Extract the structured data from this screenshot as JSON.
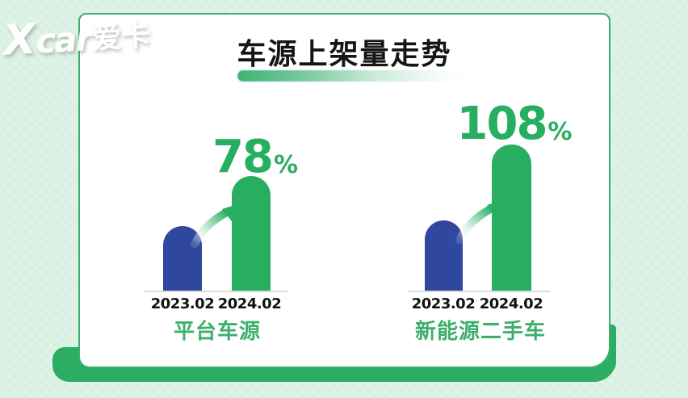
{
  "watermark": {
    "x": "X",
    "latin": "car",
    "cn": "爱卡"
  },
  "card": {
    "title": "车源上架量走势"
  },
  "colors": {
    "background": "#D9F0E3",
    "card_border": "#3CAD6B",
    "card_backing": "#2BAE64",
    "bar_blue": "#30479F",
    "bar_green": "#27AE61",
    "accent_green_text": "#27AE61",
    "group_label_green": "#3CAF6C",
    "baseline_gray": "#DCDCDC",
    "title_black": "#151515"
  },
  "chart_data": {
    "type": "bar",
    "title": "车源上架量走势",
    "categories": [
      "2023.02",
      "2024.02"
    ],
    "groups": [
      {
        "name": "平台车源",
        "categories": [
          "2023.02",
          "2024.02"
        ],
        "values_indexed": [
          100,
          178
        ],
        "growth_value": "78",
        "growth_unit": "%",
        "bar_colors": [
          "#30479F",
          "#27AE61"
        ]
      },
      {
        "name": "新能源二手车",
        "categories": [
          "2023.02",
          "2024.02"
        ],
        "values_indexed": [
          100,
          208
        ],
        "growth_value": "108",
        "growth_unit": "%",
        "bar_colors": [
          "#30479F",
          "#27AE61"
        ]
      }
    ],
    "layout_hints": {
      "legend": false,
      "gridlines": false,
      "baseline_only": true,
      "value_labels": "growth percentage above 2024 bar",
      "annotations": "curved growth arrow from 2023 bar to 2024 bar"
    }
  }
}
